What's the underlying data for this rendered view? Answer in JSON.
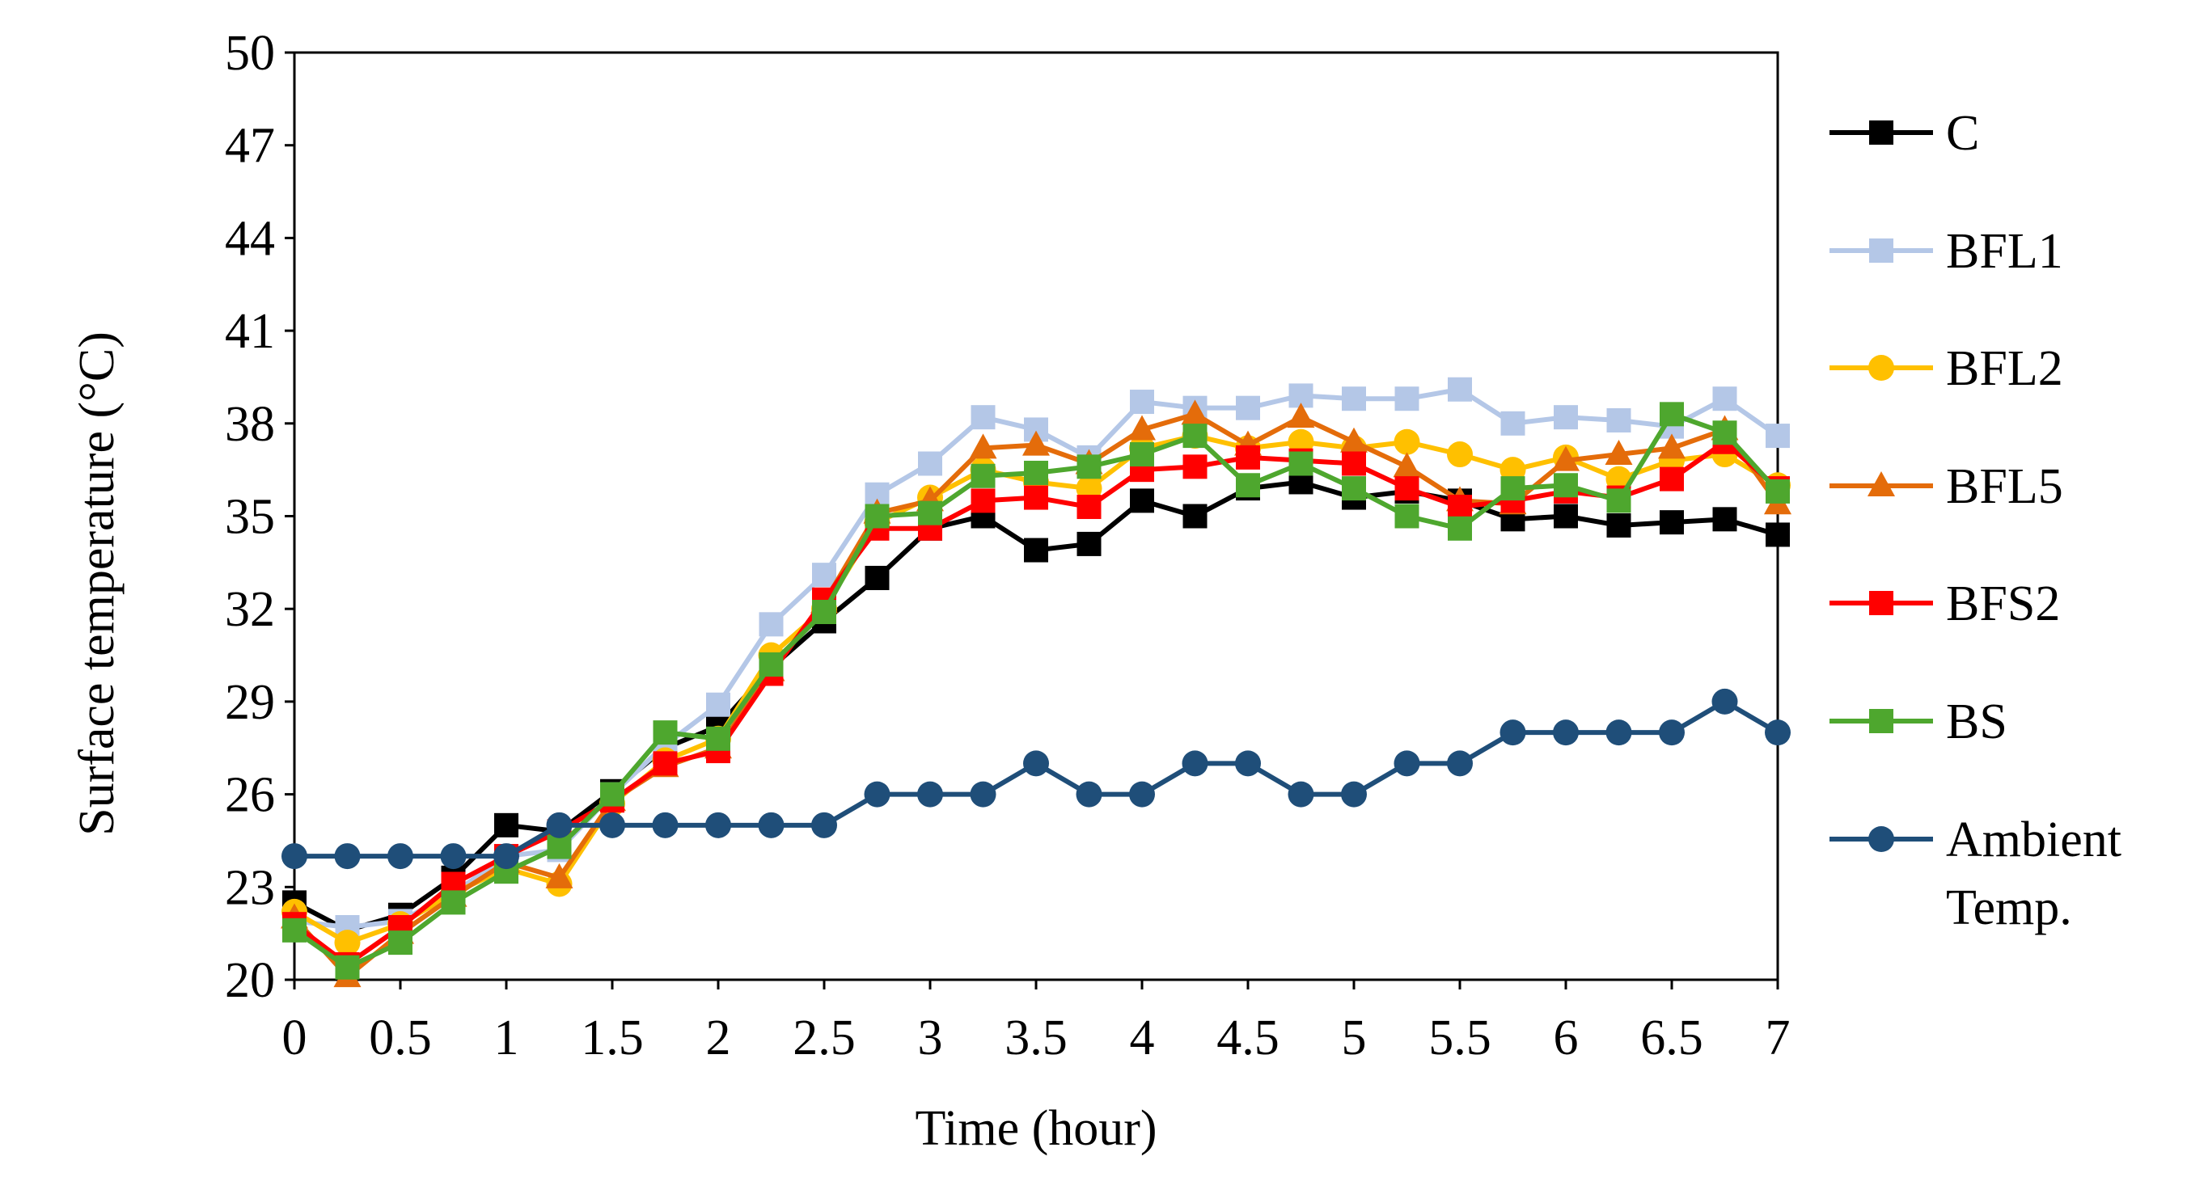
{
  "chart_data": {
    "type": "line",
    "title": "",
    "xlabel": "Time (hour)",
    "ylabel": "Surface temperature (°C)",
    "xlim": [
      0,
      7
    ],
    "ylim": [
      20,
      50
    ],
    "xticks": [
      "0",
      "0.5",
      "1",
      "1.5",
      "2",
      "2.5",
      "3",
      "3.5",
      "4",
      "4.5",
      "5",
      "5.5",
      "6",
      "6.5",
      "7"
    ],
    "yticks": [
      "20",
      "23",
      "26",
      "29",
      "32",
      "35",
      "38",
      "41",
      "44",
      "47",
      "50"
    ],
    "grid": false,
    "legend_position": "right",
    "x": [
      0,
      0.25,
      0.5,
      0.75,
      1,
      1.25,
      1.5,
      1.75,
      2,
      2.25,
      2.5,
      2.75,
      3,
      3.25,
      3.5,
      3.75,
      4,
      4.25,
      4.5,
      4.75,
      5,
      5.25,
      5.5,
      5.75,
      6,
      6.25,
      6.5,
      6.75,
      7
    ],
    "series": [
      {
        "name": "C",
        "color": "#000000",
        "marker": "square",
        "values": [
          22.5,
          21.6,
          22.1,
          23.3,
          25.0,
          24.8,
          26.1,
          27.5,
          28.2,
          30.1,
          31.6,
          33.0,
          34.6,
          35.0,
          33.9,
          34.1,
          35.5,
          35.0,
          35.9,
          36.1,
          35.6,
          35.8,
          35.5,
          34.9,
          35.0,
          34.7,
          34.8,
          34.9,
          34.4
        ]
      },
      {
        "name": "BFL1",
        "color": "#b4c7e7",
        "marker": "square",
        "values": [
          21.9,
          21.7,
          21.9,
          22.8,
          24.0,
          24.2,
          26.0,
          27.6,
          28.9,
          31.5,
          33.1,
          35.7,
          36.7,
          38.2,
          37.8,
          36.9,
          38.7,
          38.5,
          38.5,
          38.9,
          38.8,
          38.8,
          39.1,
          38.0,
          38.2,
          38.1,
          37.9,
          38.8,
          37.6
        ]
      },
      {
        "name": "BFL2",
        "color": "#ffc000",
        "marker": "circle",
        "values": [
          22.2,
          21.2,
          21.8,
          22.8,
          23.6,
          23.1,
          25.7,
          27.1,
          27.8,
          30.5,
          32.0,
          34.8,
          35.6,
          36.5,
          36.1,
          35.9,
          37.2,
          37.6,
          37.2,
          37.4,
          37.2,
          37.4,
          37.0,
          36.5,
          36.9,
          36.2,
          36.8,
          37.0,
          36.0
        ]
      },
      {
        "name": "BFL5",
        "color": "#e46c0a",
        "marker": "triangle",
        "values": [
          22.0,
          20.1,
          21.5,
          22.7,
          23.8,
          23.3,
          25.8,
          26.9,
          27.5,
          30.0,
          32.2,
          35.1,
          35.5,
          37.2,
          37.3,
          36.7,
          37.8,
          38.3,
          37.3,
          38.2,
          37.4,
          36.6,
          35.5,
          35.4,
          36.8,
          37.0,
          37.2,
          37.8,
          35.4
        ]
      },
      {
        "name": "BFS2",
        "color": "#ff0000",
        "marker": "square",
        "values": [
          21.8,
          20.5,
          21.7,
          23.1,
          24.0,
          24.8,
          25.8,
          27.0,
          27.4,
          29.9,
          32.3,
          34.6,
          34.6,
          35.5,
          35.6,
          35.3,
          36.5,
          36.6,
          36.9,
          36.8,
          36.7,
          35.9,
          35.3,
          35.5,
          35.8,
          35.6,
          36.2,
          37.4,
          35.9
        ]
      },
      {
        "name": "BS",
        "color": "#4ea72e",
        "marker": "square",
        "values": [
          21.6,
          20.4,
          21.2,
          22.5,
          23.5,
          24.3,
          26.0,
          28.0,
          27.8,
          30.2,
          31.9,
          35.0,
          35.1,
          36.3,
          36.4,
          36.6,
          37.0,
          37.6,
          36.0,
          36.7,
          35.9,
          35.0,
          34.6,
          35.9,
          36.0,
          35.5,
          38.3,
          37.7,
          35.8
        ]
      },
      {
        "name": "Ambient Temp.",
        "color": "#1f4e79",
        "marker": "circle",
        "values": [
          24,
          24,
          24,
          24,
          24,
          25,
          25,
          25,
          25,
          25,
          25,
          26,
          26,
          26,
          27,
          26,
          26,
          27,
          27,
          26,
          26,
          27,
          27,
          28,
          28,
          28,
          28,
          29,
          28
        ]
      }
    ]
  }
}
